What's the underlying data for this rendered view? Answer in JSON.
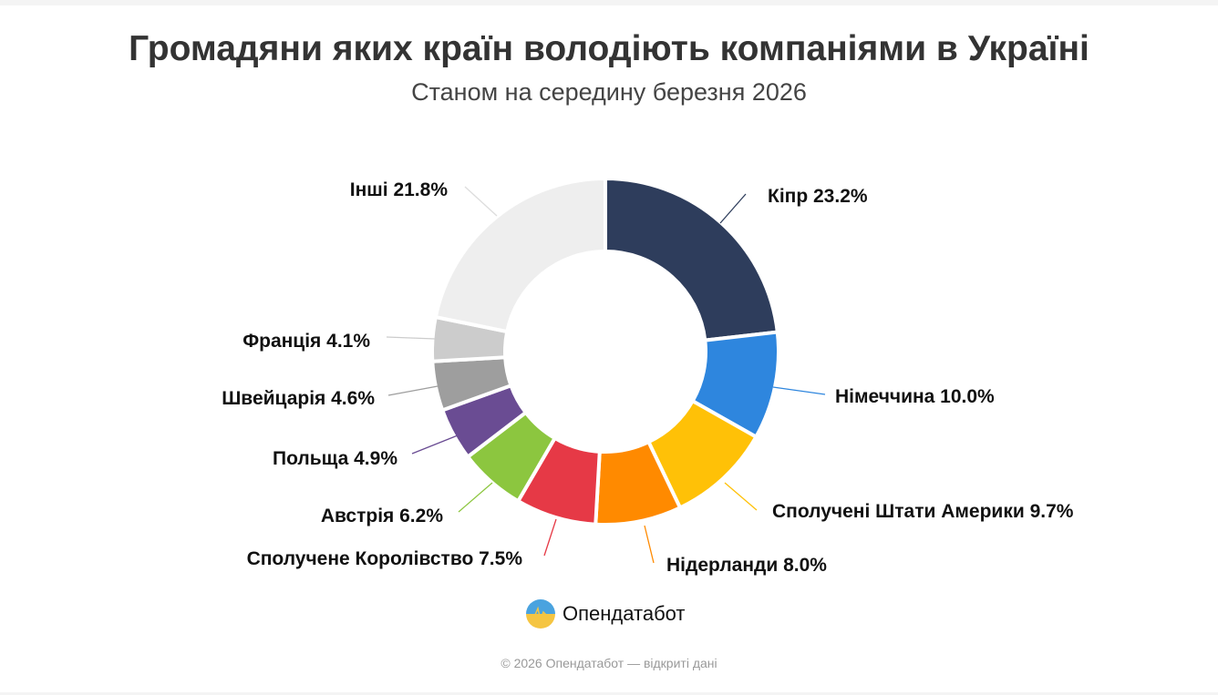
{
  "chart_data": {
    "type": "pie",
    "donut": true,
    "title": "Громадяни яких країн володіють компаніями в Україні",
    "subtitle": "Станом на середину березня 2026",
    "categories": [
      "Кіпр",
      "Німеччина",
      "Сполучені Штати Америки",
      "Нідерланди",
      "Сполучене Королівство",
      "Австрія",
      "Польща",
      "Швейцарія",
      "Франція",
      "Інші"
    ],
    "values": [
      23.2,
      10.0,
      9.7,
      8.0,
      7.5,
      6.2,
      4.9,
      4.6,
      4.1,
      21.8
    ],
    "labels": [
      "Кіпр 23.2%",
      "Німеччина 10.0%",
      "Сполучені Штати Америки 9.7%",
      "Нідерланди 8.0%",
      "Сполучене Королівство 7.5%",
      "Австрія 6.2%",
      "Польща 4.9%",
      "Швейцарія 4.6%",
      "Франція 4.1%",
      "Інші 21.8%"
    ],
    "colors": [
      "#2e3d5c",
      "#2e86de",
      "#ffc107",
      "#ff8a00",
      "#e63946",
      "#8cc63f",
      "#6a4c93",
      "#9e9e9e",
      "#cccccc",
      "#eeeeee"
    ]
  },
  "brand": {
    "name": "Опендатабот",
    "logo": "opendatabot-logo"
  },
  "footer": "© 2026 Опендатабот — відкриті дані"
}
